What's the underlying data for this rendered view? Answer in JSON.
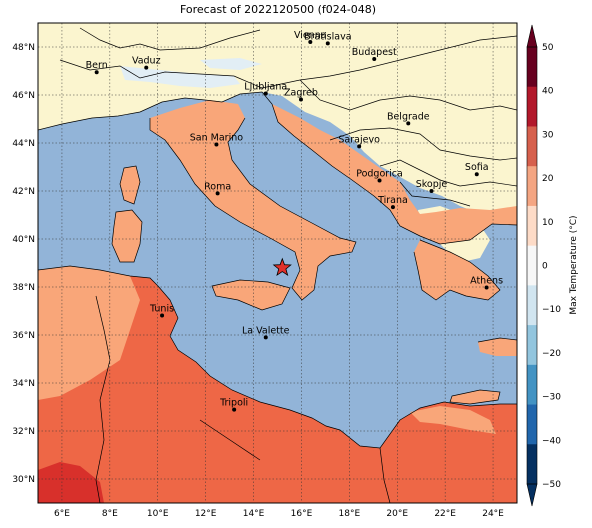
{
  "title": "Forecast of 2022120500 (f024-048)",
  "map": {
    "lon_range": [
      5,
      25
    ],
    "lat_range": [
      29,
      49
    ],
    "lon_ticks": [
      "6°E",
      "8°E",
      "10°E",
      "12°E",
      "14°E",
      "16°E",
      "18°E",
      "20°E",
      "22°E",
      "24°E"
    ],
    "lat_ticks": [
      "48°N",
      "46°N",
      "44°N",
      "42°N",
      "40°N",
      "38°N",
      "36°N",
      "34°N",
      "32°N",
      "30°N"
    ],
    "grid": true,
    "colors": {
      "sea": "#92b4d8",
      "cold": "#fbf5cf",
      "very_cold": "#e2eef5",
      "warm": "#f9a679",
      "hot": "#ee6746",
      "hotter": "#d8302b"
    },
    "cities": [
      {
        "name": "Bern",
        "lon": 7.45,
        "lat": 46.95
      },
      {
        "name": "Vaduz",
        "lon": 9.52,
        "lat": 47.14
      },
      {
        "name": "Vienna",
        "lon": 16.37,
        "lat": 48.21
      },
      {
        "name": "Bratislava",
        "lon": 17.1,
        "lat": 48.15
      },
      {
        "name": "Budapest",
        "lon": 19.04,
        "lat": 47.5
      },
      {
        "name": "Ljubljana",
        "lon": 14.51,
        "lat": 46.06
      },
      {
        "name": "Zagreb",
        "lon": 15.98,
        "lat": 45.81
      },
      {
        "name": "Belgrade",
        "lon": 20.46,
        "lat": 44.82
      },
      {
        "name": "San Marino",
        "lon": 12.45,
        "lat": 43.94
      },
      {
        "name": "Sarajevo",
        "lon": 18.41,
        "lat": 43.86
      },
      {
        "name": "Sofia",
        "lon": 23.32,
        "lat": 42.7
      },
      {
        "name": "Podgorica",
        "lon": 19.26,
        "lat": 42.44
      },
      {
        "name": "Skopje",
        "lon": 21.43,
        "lat": 42.0
      },
      {
        "name": "Roma",
        "lon": 12.5,
        "lat": 41.9
      },
      {
        "name": "Tirana",
        "lon": 19.82,
        "lat": 41.33
      },
      {
        "name": "Athens",
        "lon": 23.73,
        "lat": 37.98
      },
      {
        "name": "Tunis",
        "lon": 10.18,
        "lat": 36.81
      },
      {
        "name": "La Valette",
        "lon": 14.51,
        "lat": 35.9
      },
      {
        "name": "Tripoli",
        "lon": 13.19,
        "lat": 32.89
      }
    ],
    "marker": {
      "name": "star",
      "lon": 15.2,
      "lat": 38.8,
      "color": "#e0302a"
    }
  },
  "colorbar": {
    "label": "Max Temperature (°C)",
    "ticks": [
      "50",
      "40",
      "30",
      "20",
      "10",
      "0",
      "−10",
      "−20",
      "−30",
      "−40",
      "−50"
    ],
    "colors_top_to_bottom": [
      "#67001f",
      "#b2182b",
      "#d6604d",
      "#f4a582",
      "#fddbc7",
      "#f7f7f7",
      "#d1e5f0",
      "#92c5de",
      "#4393c3",
      "#2166ac",
      "#053061"
    ],
    "extend": "both"
  }
}
